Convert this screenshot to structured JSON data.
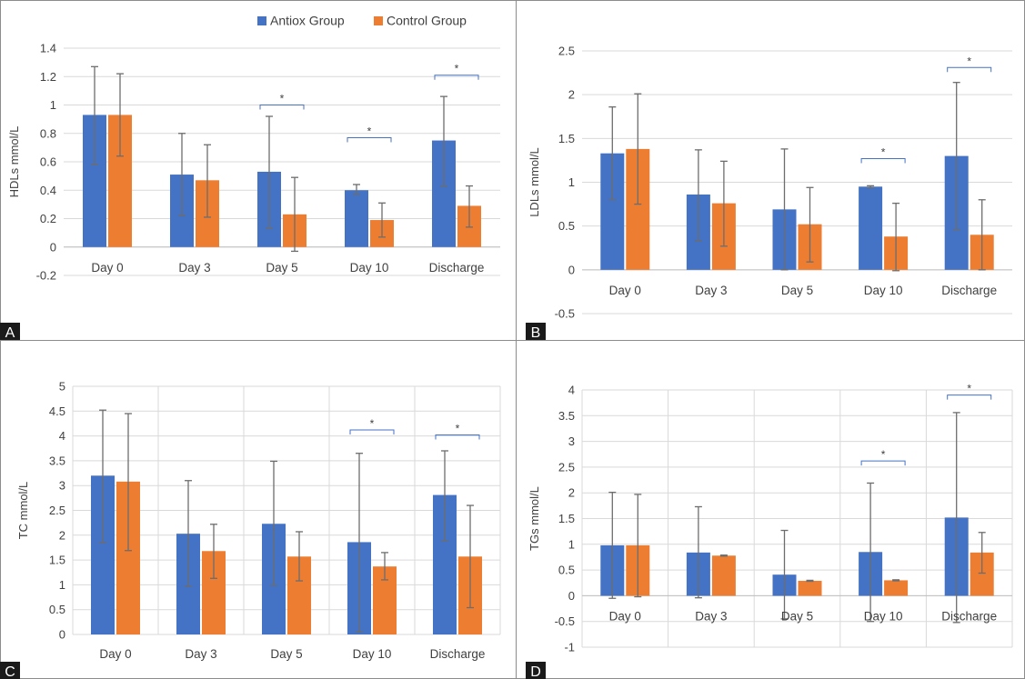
{
  "legend": [
    {
      "label": "Antiox Group",
      "color": "#4472C4"
    },
    {
      "label": "Control Group",
      "color": "#ED7D31"
    }
  ],
  "colors": {
    "antiox": "#4472C4",
    "control": "#ED7D31",
    "error_bar": "#6d6d6d",
    "grid": "#d9d9d9",
    "significance": "#4472C4",
    "frame": "#8c8c8c"
  },
  "chart_data": [
    {
      "panel": "A",
      "type": "bar",
      "ylabel": "HDLs  mmol/L",
      "categories": [
        "Day 0",
        "Day 3",
        "Day 5",
        "Day 10",
        "Discharge"
      ],
      "ylim": [
        -0.2,
        1.4
      ],
      "yticks": [
        -0.2,
        0,
        0.2,
        0.4,
        0.6,
        0.8,
        1,
        1.2,
        1.4
      ],
      "ytick_labels": [
        "-0.2",
        "0",
        "0.2",
        "0.4",
        "0.6",
        "0.8",
        "1",
        "1.2",
        "1.4"
      ],
      "series": [
        {
          "name": "Antiox Group",
          "values": [
            0.93,
            0.51,
            0.53,
            0.4,
            0.75
          ],
          "err_low": [
            0.58,
            0.22,
            0.13,
            0.37,
            0.43
          ],
          "err_high": [
            1.27,
            0.8,
            0.92,
            0.44,
            1.06
          ]
        },
        {
          "name": "Control Group",
          "values": [
            0.93,
            0.47,
            0.23,
            0.19,
            0.29
          ],
          "err_low": [
            0.64,
            0.21,
            -0.03,
            0.07,
            0.14
          ],
          "err_high": [
            1.22,
            0.72,
            0.49,
            0.31,
            0.43
          ]
        }
      ],
      "significance": [
        {
          "category": 2,
          "label": "*",
          "y": 1.0
        },
        {
          "category": 3,
          "label": "*",
          "y": 0.77
        },
        {
          "category": 4,
          "label": "*",
          "y": 1.21
        }
      ],
      "grid": true
    },
    {
      "panel": "B",
      "type": "bar",
      "ylabel": "LDLs  mmol/L",
      "categories": [
        "Day 0",
        "Day 3",
        "Day 5",
        "Day 10",
        "Discharge"
      ],
      "ylim": [
        -0.5,
        2.5
      ],
      "yticks": [
        -0.5,
        0,
        0.5,
        1,
        1.5,
        2,
        2.5
      ],
      "ytick_labels": [
        "-0.5",
        "0",
        "0.5",
        "1",
        "1.5",
        "2",
        "2.5"
      ],
      "series": [
        {
          "name": "Antiox Group",
          "values": [
            1.33,
            0.86,
            0.69,
            0.95,
            1.3
          ],
          "err_low": [
            0.8,
            0.33,
            0.0,
            0.94,
            0.46
          ],
          "err_high": [
            1.86,
            1.37,
            1.38,
            0.96,
            2.14
          ]
        },
        {
          "name": "Control Group",
          "values": [
            1.38,
            0.76,
            0.52,
            0.38,
            0.4
          ],
          "err_low": [
            0.75,
            0.27,
            0.09,
            -0.01,
            0.0
          ],
          "err_high": [
            2.01,
            1.24,
            0.94,
            0.76,
            0.8
          ]
        }
      ],
      "significance": [
        {
          "category": 3,
          "label": "*",
          "y": 1.27
        },
        {
          "category": 4,
          "label": "*",
          "y": 2.31
        }
      ],
      "grid": true
    },
    {
      "panel": "C",
      "type": "bar",
      "ylabel": "TC  mmol/L",
      "categories": [
        "Day 0",
        "Day 3",
        "Day 5",
        "Day 10",
        "Discharge"
      ],
      "ylim": [
        0,
        5
      ],
      "yticks": [
        0,
        0.5,
        1,
        1.5,
        2,
        2.5,
        3,
        3.5,
        4,
        4.5,
        5
      ],
      "ytick_labels": [
        "0",
        "0.5",
        "1",
        "1.5",
        "2",
        "2.5",
        "3",
        "3.5",
        "4",
        "4.5",
        "5"
      ],
      "series": [
        {
          "name": "Antiox Group",
          "values": [
            3.2,
            2.03,
            2.23,
            1.86,
            2.81
          ],
          "err_low": [
            1.85,
            0.97,
            0.99,
            0.05,
            1.89
          ],
          "err_high": [
            4.52,
            3.1,
            3.49,
            3.65,
            3.7
          ]
        },
        {
          "name": "Control Group",
          "values": [
            3.08,
            1.68,
            1.57,
            1.37,
            1.57
          ],
          "err_low": [
            1.69,
            1.13,
            1.08,
            1.1,
            0.54
          ],
          "err_high": [
            4.45,
            2.22,
            2.07,
            1.65,
            2.6
          ]
        }
      ],
      "significance": [
        {
          "category": 3,
          "label": "*",
          "y": 4.12
        },
        {
          "category": 4,
          "label": "*",
          "y": 4.02
        }
      ],
      "grid": true
    },
    {
      "panel": "D",
      "type": "bar",
      "ylabel": "TGs  mmol/L",
      "categories": [
        "Day 0",
        "Day 3",
        "Day 5",
        "Day 10",
        "Discharge"
      ],
      "ylim": [
        -1,
        4
      ],
      "yticks": [
        -1,
        -0.5,
        0,
        0.5,
        1,
        1.5,
        2,
        2.5,
        3,
        3.5,
        4
      ],
      "ytick_labels": [
        "-1",
        "-0.5",
        "0",
        "0.5",
        "1",
        "1.5",
        "2",
        "2.5",
        "3",
        "3.5",
        "4"
      ],
      "series": [
        {
          "name": "Antiox Group",
          "values": [
            0.98,
            0.84,
            0.41,
            0.85,
            1.52
          ],
          "err_low": [
            -0.05,
            -0.04,
            -0.45,
            -0.5,
            -0.52
          ],
          "err_high": [
            2.01,
            1.73,
            1.27,
            2.19,
            3.56
          ]
        },
        {
          "name": "Control Group",
          "values": [
            0.98,
            0.78,
            0.29,
            0.3,
            0.84
          ],
          "err_low": [
            -0.02,
            0.77,
            0.28,
            0.29,
            0.44
          ],
          "err_high": [
            1.97,
            0.79,
            0.3,
            0.31,
            1.23
          ]
        }
      ],
      "significance": [
        {
          "category": 3,
          "label": "*",
          "y": 2.62
        },
        {
          "category": 4,
          "label": "*",
          "y": 3.9
        }
      ],
      "grid": true
    }
  ]
}
